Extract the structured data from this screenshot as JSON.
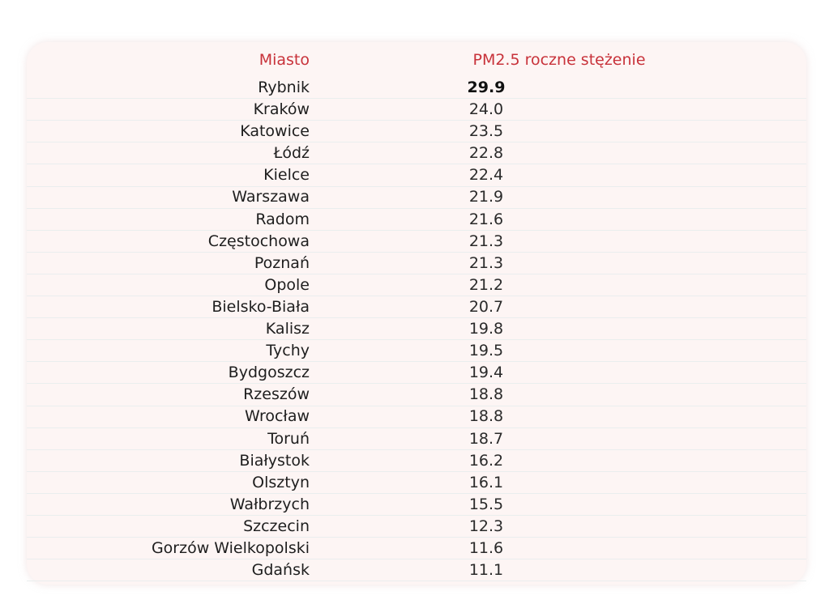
{
  "chart_data": {
    "type": "table",
    "columns": [
      "Miasto",
      "PM2.5 roczne stężenie"
    ],
    "rows": [
      {
        "city": "Rybnik",
        "value": "29.9",
        "bold": true
      },
      {
        "city": "Kraków",
        "value": "24.0"
      },
      {
        "city": "Katowice",
        "value": "23.5"
      },
      {
        "city": "Łódź",
        "value": "22.8"
      },
      {
        "city": "Kielce",
        "value": "22.4"
      },
      {
        "city": "Warszawa",
        "value": "21.9"
      },
      {
        "city": "Radom",
        "value": "21.6"
      },
      {
        "city": "Częstochowa",
        "value": "21.3"
      },
      {
        "city": "Poznań",
        "value": "21.3"
      },
      {
        "city": "Opole",
        "value": "21.2"
      },
      {
        "city": "Bielsko-Biała",
        "value": "20.7"
      },
      {
        "city": "Kalisz",
        "value": "19.8"
      },
      {
        "city": "Tychy",
        "value": "19.5"
      },
      {
        "city": "Bydgoszcz",
        "value": "19.4"
      },
      {
        "city": "Rzeszów",
        "value": "18.8"
      },
      {
        "city": "Wrocław",
        "value": "18.8"
      },
      {
        "city": "Toruń",
        "value": "18.7"
      },
      {
        "city": "Białystok",
        "value": "16.2"
      },
      {
        "city": "Olsztyn",
        "value": "16.1"
      },
      {
        "city": "Wałbrzych",
        "value": "15.5"
      },
      {
        "city": "Szczecin",
        "value": "12.3"
      },
      {
        "city": "Gorzów Wielkopolski",
        "value": "11.6"
      },
      {
        "city": "Gdańsk",
        "value": "11.1"
      }
    ]
  },
  "colors": {
    "header_text": "#c8323a",
    "panel_background": "#fdf5f4",
    "row_divider": "#eaeeee",
    "body_text": "#1e1e1e"
  }
}
